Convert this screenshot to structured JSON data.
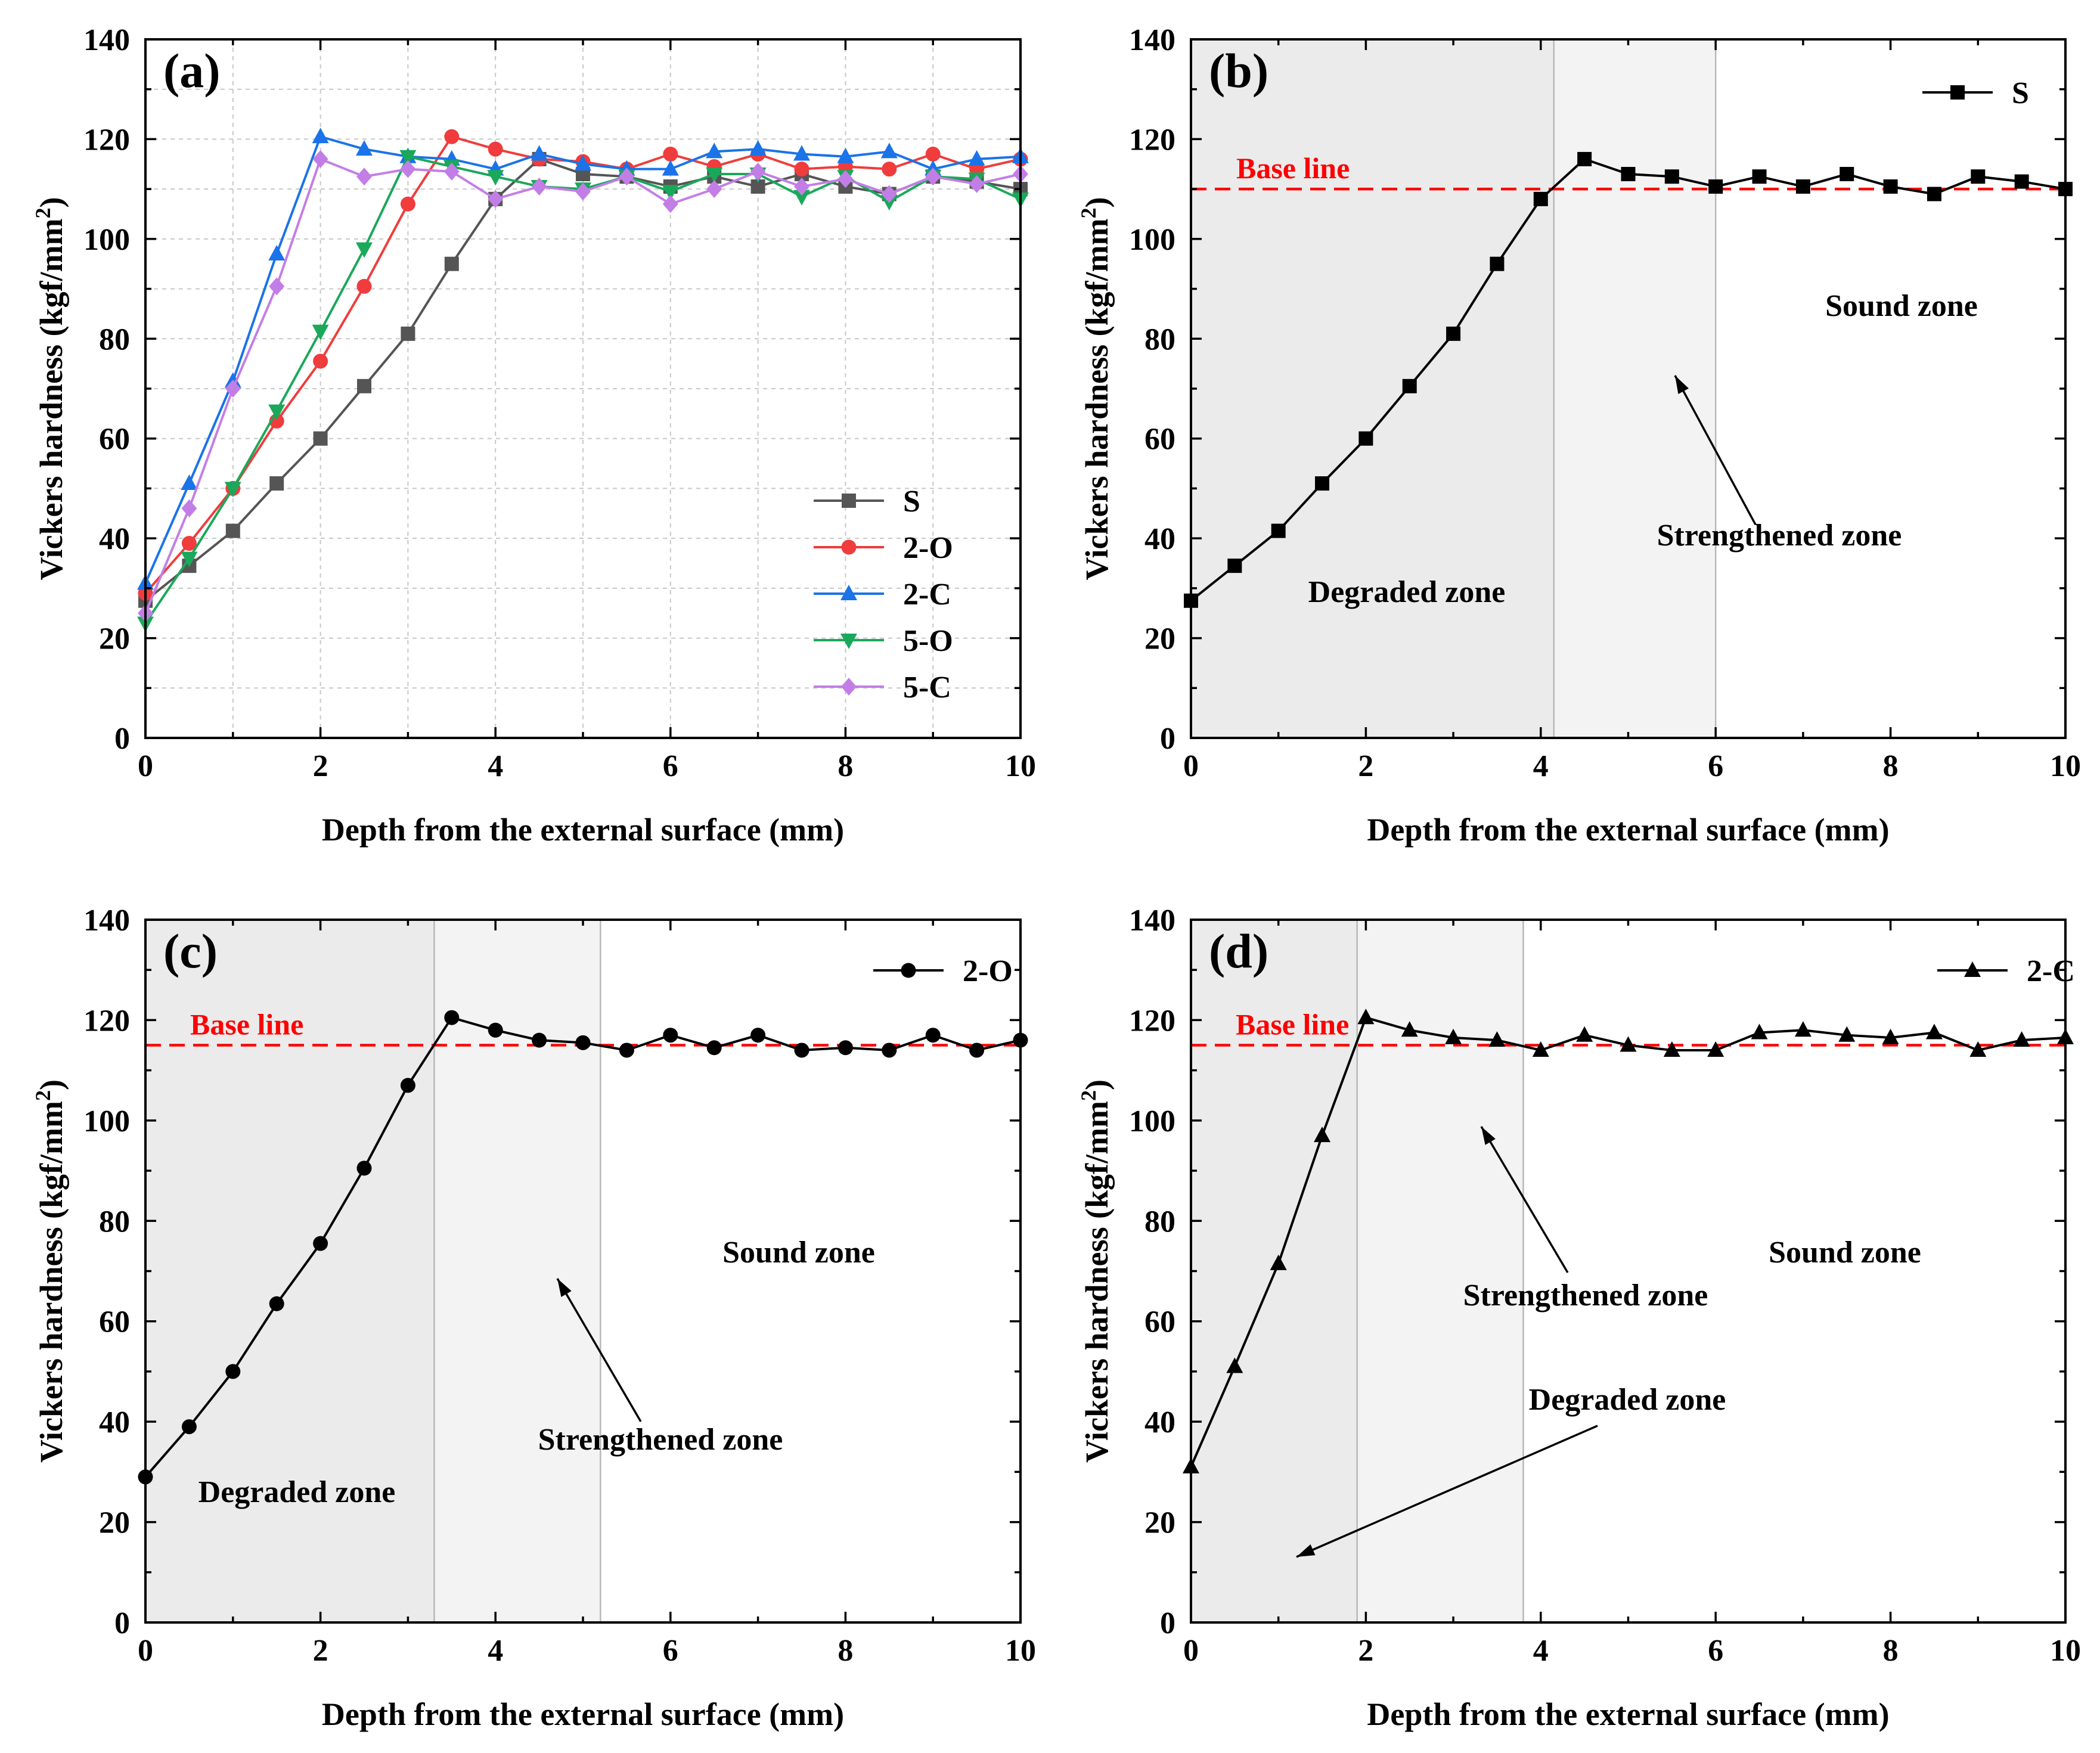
{
  "chart_data": [
    {
      "panel": "(a)",
      "type": "line",
      "xlabel": "Depth from the external surface (mm)",
      "ylabel": "Vickers hardness (kgf/mm",
      "ylabel_sup": "2",
      "ylabel_end": ")",
      "xlim": [
        0,
        10
      ],
      "ylim": [
        0,
        140
      ],
      "xticks": [
        "0",
        "2",
        "4",
        "6",
        "8",
        "10"
      ],
      "yticks": [
        "0",
        "20",
        "40",
        "60",
        "80",
        "100",
        "120",
        "140"
      ],
      "grid": true,
      "legend_position": "bottom-right",
      "x": [
        0,
        0.5,
        1,
        1.5,
        2,
        2.5,
        3,
        3.5,
        4,
        4.5,
        5,
        5.5,
        6,
        6.5,
        7,
        7.5,
        8,
        8.5,
        9,
        9.5,
        10
      ],
      "series": [
        {
          "name": "S",
          "color": "#555555",
          "marker": "square",
          "values": [
            27.5,
            34.5,
            41.5,
            51,
            60,
            70.5,
            81,
            95,
            108,
            116,
            113,
            112.5,
            110.5,
            112.5,
            110.5,
            113,
            110.5,
            109,
            112.5,
            111.5,
            110
          ]
        },
        {
          "name": "2-O",
          "color": "#f03c3c",
          "marker": "circle",
          "values": [
            29,
            39,
            50,
            63.5,
            75.5,
            90.5,
            107,
            120.5,
            118,
            116,
            115.5,
            114,
            117,
            114.5,
            117,
            114,
            114.5,
            114,
            117,
            114,
            116
          ]
        },
        {
          "name": "2-C",
          "color": "#1a73e8",
          "marker": "triangle-up",
          "values": [
            31,
            51,
            71.5,
            97,
            120.5,
            118,
            116.5,
            116,
            114,
            117,
            115,
            114,
            114,
            117.5,
            118,
            117,
            116.5,
            117.5,
            114,
            116,
            116.5
          ]
        },
        {
          "name": "5-O",
          "color": "#1aa85a",
          "marker": "triangle-down",
          "values": [
            23,
            36,
            50,
            65.5,
            81.5,
            98,
            116.5,
            114.5,
            112.5,
            110.5,
            110,
            112.5,
            109.5,
            113,
            113,
            108.5,
            112.5,
            107.5,
            112.5,
            112,
            108
          ]
        },
        {
          "name": "5-C",
          "color": "#c27ee6",
          "marker": "diamond",
          "values": [
            25,
            46,
            70,
            90.5,
            116,
            112.5,
            114,
            113.5,
            108,
            110.5,
            109.5,
            112.5,
            107,
            110,
            113.5,
            110.5,
            112,
            109,
            112.5,
            111,
            113
          ]
        }
      ]
    },
    {
      "panel": "(b)",
      "type": "line",
      "xlabel": "Depth from the external surface (mm)",
      "ylabel": "Vickers hardness (kgf/mm",
      "ylabel_sup": "2",
      "ylabel_end": ")",
      "xlim": [
        0,
        10
      ],
      "ylim": [
        0,
        140
      ],
      "xticks": [
        "0",
        "2",
        "4",
        "6",
        "8",
        "10"
      ],
      "yticks": [
        "0",
        "20",
        "40",
        "60",
        "80",
        "100",
        "120",
        "140"
      ],
      "legend_position": "top-right",
      "baseline": {
        "label": "Base line",
        "value": 110,
        "color": "#ff0000"
      },
      "zones": {
        "degraded_end": 4.15,
        "strengthened_end": 6
      },
      "annotations": {
        "sound": "Sound zone",
        "strengthened": "Strengthened zone",
        "degraded": "Degraded zone"
      },
      "x": [
        0,
        0.5,
        1,
        1.5,
        2,
        2.5,
        3,
        3.5,
        4,
        4.5,
        5,
        5.5,
        6,
        6.5,
        7,
        7.5,
        8,
        8.5,
        9,
        9.5,
        10
      ],
      "series": [
        {
          "name": "S",
          "color": "#000000",
          "marker": "square",
          "values": [
            27.5,
            34.5,
            41.5,
            51,
            60,
            70.5,
            81,
            95,
            108,
            116,
            113,
            112.5,
            110.5,
            112.5,
            110.5,
            113,
            110.5,
            109,
            112.5,
            111.5,
            110
          ]
        }
      ]
    },
    {
      "panel": "(c)",
      "type": "line",
      "xlabel": "Depth from the external surface (mm)",
      "ylabel": "Vickers hardness (kgf/mm",
      "ylabel_sup": "2",
      "ylabel_end": ")",
      "xlim": [
        0,
        10
      ],
      "ylim": [
        0,
        140
      ],
      "xticks": [
        "0",
        "2",
        "4",
        "6",
        "8",
        "10"
      ],
      "yticks": [
        "0",
        "20",
        "40",
        "60",
        "80",
        "100",
        "120",
        "140"
      ],
      "legend_position": "top-right",
      "baseline": {
        "label": "Base line",
        "value": 115,
        "color": "#ff0000"
      },
      "zones": {
        "degraded_end": 3.3,
        "strengthened_end": 5.2
      },
      "annotations": {
        "sound": "Sound zone",
        "strengthened": "Strengthened zone",
        "degraded": "Degraded zone"
      },
      "x": [
        0,
        0.5,
        1,
        1.5,
        2,
        2.5,
        3,
        3.5,
        4,
        4.5,
        5,
        5.5,
        6,
        6.5,
        7,
        7.5,
        8,
        8.5,
        9,
        9.5,
        10
      ],
      "series": [
        {
          "name": "2-O",
          "color": "#000000",
          "marker": "circle",
          "values": [
            29,
            39,
            50,
            63.5,
            75.5,
            90.5,
            107,
            120.5,
            118,
            116,
            115.5,
            114,
            117,
            114.5,
            117,
            114,
            114.5,
            114,
            117,
            114,
            116
          ]
        }
      ]
    },
    {
      "panel": "(d)",
      "type": "line",
      "xlabel": "Depth from the external surface (mm)",
      "ylabel": "Vickers hardness (kgf/mm",
      "ylabel_sup": "2",
      "ylabel_end": ")",
      "xlim": [
        0,
        10
      ],
      "ylim": [
        0,
        140
      ],
      "xticks": [
        "0",
        "2",
        "4",
        "6",
        "8",
        "10"
      ],
      "yticks": [
        "0",
        "20",
        "40",
        "60",
        "80",
        "100",
        "120",
        "140"
      ],
      "legend_position": "top-right",
      "baseline": {
        "label": "Base line",
        "value": 115,
        "color": "#ff0000"
      },
      "zones": {
        "degraded_end": 1.9,
        "strengthened_end": 3.8
      },
      "annotations": {
        "sound": "Sound zone",
        "strengthened": "Strengthened zone",
        "degraded": "Degraded zone"
      },
      "x": [
        0,
        0.5,
        1,
        1.5,
        2,
        2.5,
        3,
        3.5,
        4,
        4.5,
        5,
        5.5,
        6,
        6.5,
        7,
        7.5,
        8,
        8.5,
        9,
        9.5,
        10
      ],
      "series": [
        {
          "name": "2-C",
          "color": "#000000",
          "marker": "triangle-up",
          "values": [
            31,
            51,
            71.5,
            97,
            120.5,
            118,
            116.5,
            116,
            114,
            117,
            115,
            114,
            114,
            117.5,
            118,
            117,
            116.5,
            117.5,
            114,
            116,
            116.5
          ]
        }
      ]
    }
  ]
}
